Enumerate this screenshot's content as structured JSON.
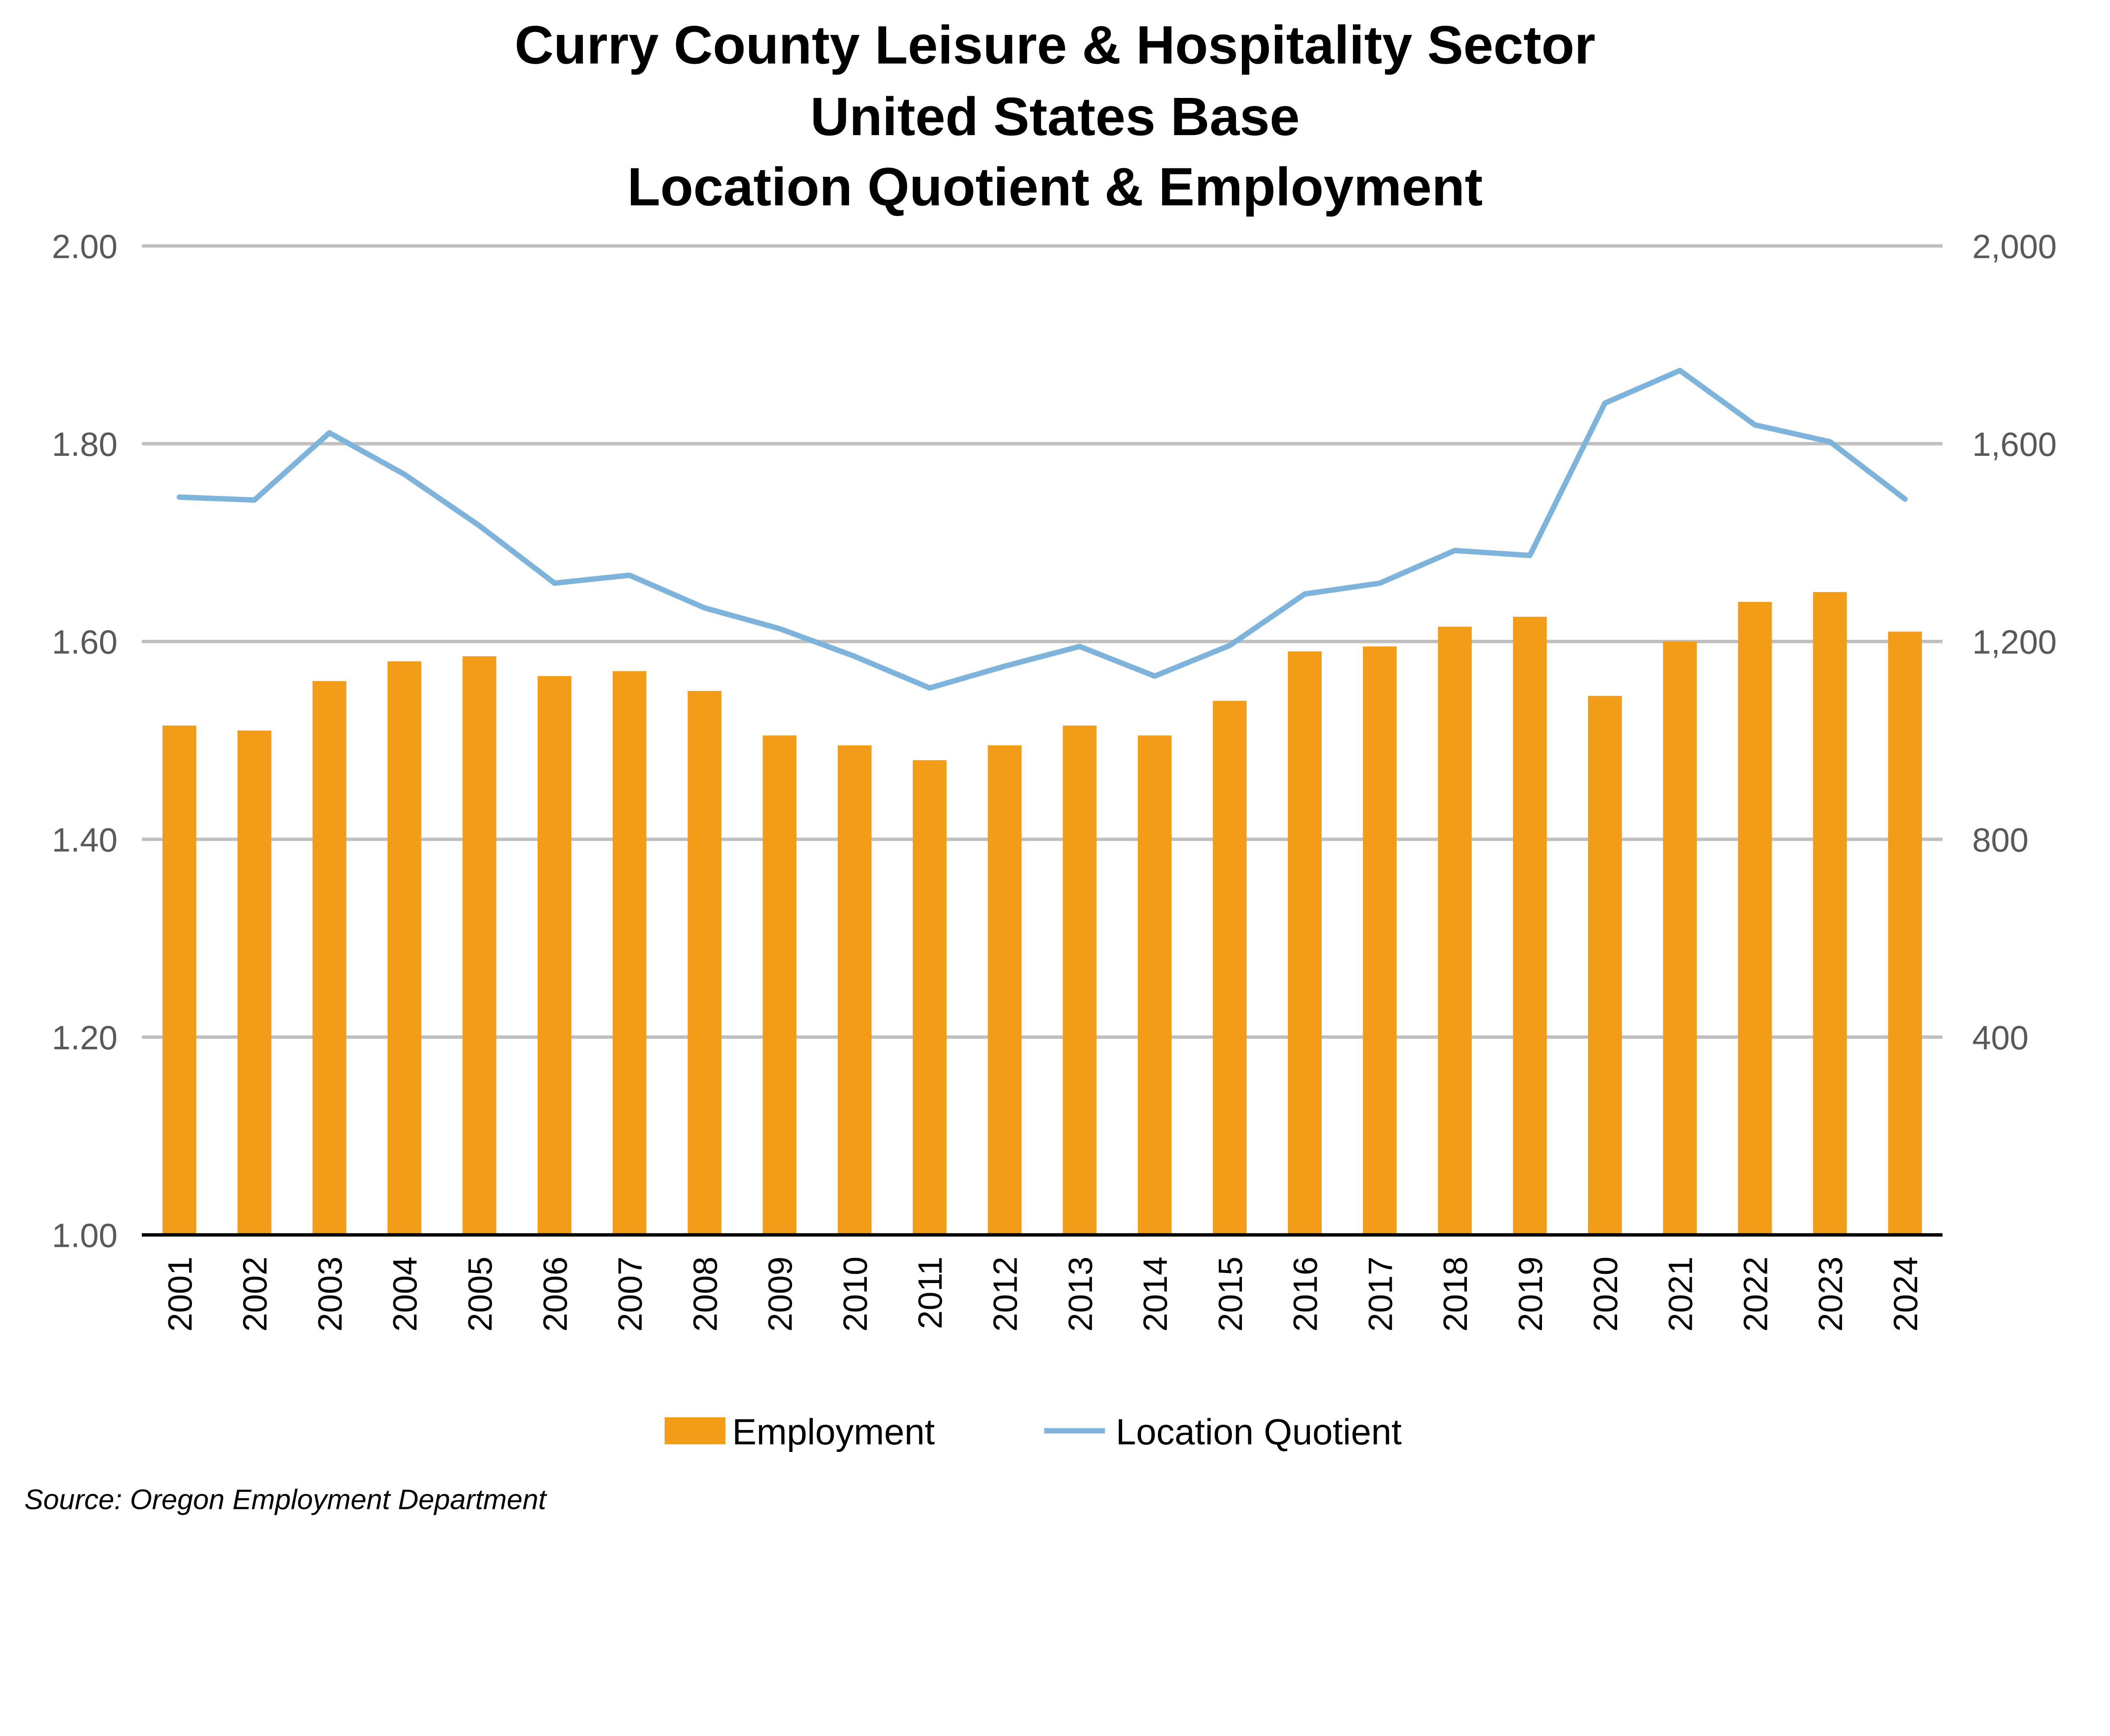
{
  "chart_data": {
    "type": "bar+line",
    "title": [
      "Curry County Leisure & Hospitality Sector",
      "United States Base",
      "Location Quotient & Employment"
    ],
    "source": "Source: Oregon Employment Department",
    "categories": [
      "2001",
      "2002",
      "2003",
      "2004",
      "2005",
      "2006",
      "2007",
      "2008",
      "2009",
      "2010",
      "2011",
      "2012",
      "2013",
      "2014",
      "2015",
      "2016",
      "2017",
      "2018",
      "2019",
      "2020",
      "2021",
      "2022",
      "2023",
      "2024"
    ],
    "series": [
      {
        "name": "Employment",
        "type": "bar",
        "axis": "right",
        "color": "#F39C18",
        "values": [
          1030,
          1020,
          1120,
          1160,
          1170,
          1130,
          1140,
          1100,
          1010,
          990,
          960,
          990,
          1030,
          1010,
          1080,
          1180,
          1190,
          1230,
          1250,
          1090,
          1200,
          1280,
          1300,
          1220
        ]
      },
      {
        "name": "Location Quotient",
        "type": "line",
        "axis": "left",
        "color": "#7EB3DB",
        "values": [
          1.746,
          1.743,
          1.811,
          1.769,
          1.717,
          1.659,
          1.667,
          1.634,
          1.613,
          1.585,
          1.553,
          1.575,
          1.595,
          1.565,
          1.596,
          1.648,
          1.659,
          1.692,
          1.687,
          1.841,
          1.874,
          1.819,
          1.802,
          1.744
        ]
      }
    ],
    "y_left": {
      "range": [
        1.0,
        2.0
      ],
      "ticks": [
        "1.00",
        "1.20",
        "1.40",
        "1.60",
        "1.80",
        "2.00"
      ]
    },
    "y_right": {
      "range": [
        0,
        2000
      ],
      "ticks": [
        "",
        "400",
        "800",
        "1,200",
        "1,600",
        "2,000"
      ]
    },
    "grid": true,
    "legend": "bottom",
    "colors": {
      "grid": "#BFBFBF",
      "axis": "#000000",
      "tick_text": "#595959"
    }
  }
}
